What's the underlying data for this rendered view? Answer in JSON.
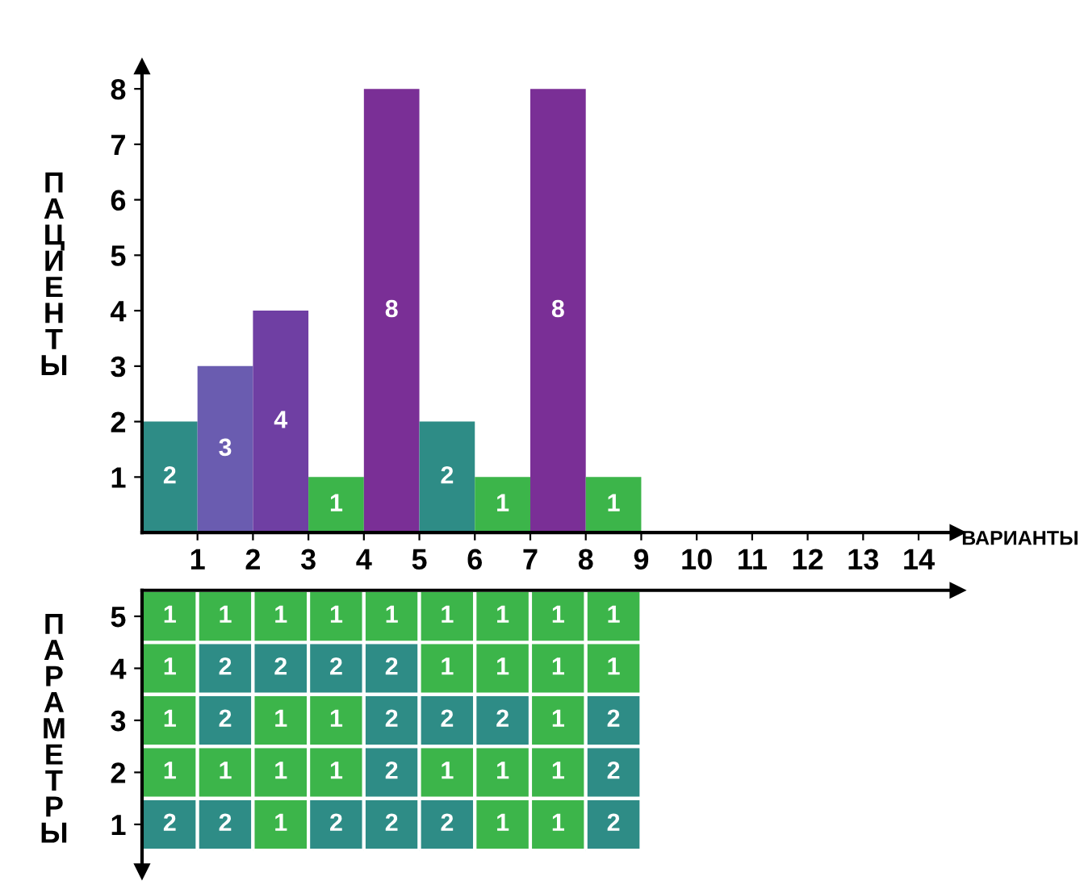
{
  "chart_data": [
    {
      "type": "histogram",
      "xlabel": "ВАРИАНТЫ",
      "ylabel": "ПАЦИЕНТЫ",
      "bins": [
        0,
        1,
        2,
        3,
        4,
        5,
        6,
        7,
        8,
        9
      ],
      "values": [
        2,
        3,
        4,
        1,
        8,
        2,
        1,
        8,
        1
      ],
      "colors": [
        "#2e8c86",
        "#6a5cb0",
        "#6f3fa3",
        "#3cb54a",
        "#7a2f96",
        "#2e8c86",
        "#3cb54a",
        "#7a2f96",
        "#3cb54a"
      ],
      "xlim": [
        0,
        14.7
      ],
      "xticks": [
        1,
        2,
        3,
        4,
        5,
        6,
        7,
        8,
        9,
        10,
        11,
        12,
        13,
        14
      ],
      "ylim": [
        0,
        8.4
      ],
      "yticks": [
        1,
        2,
        3,
        4,
        5,
        6,
        7,
        8
      ],
      "data_labels": true,
      "grid": false
    },
    {
      "type": "heatmap",
      "ylabel": "ПАРАМЕТРЫ",
      "categories": [
        null,
        null,
        null,
        null,
        null,
        null,
        null,
        null,
        null
      ],
      "y_categories": [
        "5",
        "4",
        "3",
        "2",
        "1"
      ],
      "cells": [
        [
          1,
          1,
          1,
          1,
          1,
          1,
          1,
          1,
          1
        ],
        [
          1,
          2,
          2,
          2,
          2,
          1,
          1,
          1,
          1
        ],
        [
          1,
          2,
          1,
          1,
          2,
          2,
          2,
          1,
          2
        ],
        [
          1,
          1,
          1,
          1,
          2,
          1,
          1,
          1,
          2
        ],
        [
          2,
          2,
          1,
          2,
          2,
          2,
          1,
          1,
          2
        ]
      ],
      "colors": [
        "#3cb54a",
        "#2e8c86"
      ],
      "data_labels": true,
      "grid": false
    }
  ]
}
